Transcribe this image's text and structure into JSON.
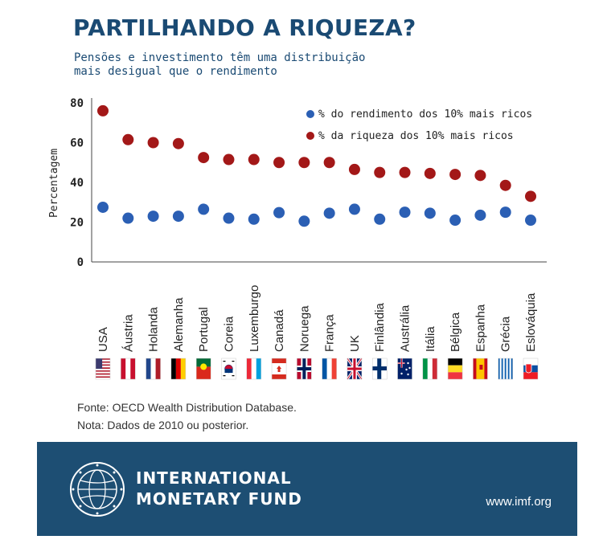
{
  "header": {
    "title": "PARTILHANDO A RIQUEZA?",
    "subtitle": "Pensões e investimento têm uma distribuição\nmais desigual que o rendimento"
  },
  "chart_data": {
    "type": "scatter",
    "ylabel": "Percentagem",
    "xlabel": "",
    "ylim": [
      0,
      80
    ],
    "yticks": [
      0,
      20,
      40,
      60,
      80
    ],
    "grid": false,
    "legend_position": "top-right",
    "categories": [
      "USA",
      "Áustria",
      "Holanda",
      "Alemanha",
      "Portugal",
      "Coreia",
      "Luxemburgo",
      "Canadá",
      "Noruega",
      "França",
      "UK",
      "Finlândia",
      "Austrália",
      "Itália",
      "Bélgica",
      "Espanha",
      "Grécia",
      "Eslováquia"
    ],
    "series": [
      {
        "name": "% do rendimento dos 10% mais ricos",
        "color": "#2b5fb4",
        "values": [
          27.5,
          22,
          23,
          23,
          26.5,
          22,
          21.5,
          24.8,
          20.5,
          24.5,
          26.5,
          21.5,
          25,
          24.5,
          21,
          23.5,
          25,
          21
        ]
      },
      {
        "name": "% da riqueza dos 10% mais ricos",
        "color": "#a31818",
        "values": [
          76,
          61.5,
          60,
          59.5,
          52.5,
          51.5,
          51.5,
          50,
          50,
          50,
          46.5,
          45,
          45,
          44.5,
          44,
          43.5,
          38.5,
          33
        ]
      }
    ],
    "flags": [
      "us-flag",
      "at-flag",
      "nl-flag",
      "de-flag",
      "pt-flag",
      "kr-flag",
      "lu-flag",
      "ca-flag",
      "no-flag",
      "fr-flag",
      "gb-flag",
      "fi-flag",
      "au-flag",
      "it-flag",
      "be-flag",
      "es-flag",
      "gr-flag",
      "sk-flag"
    ]
  },
  "notes": {
    "source": "Fonte: OECD Wealth Distribution Database.",
    "note": "Nota: Dados de 2010 ou posterior."
  },
  "footer": {
    "org_name": "INTERNATIONAL\nMONETARY FUND",
    "url": "www.imf.org",
    "seal_icon": "imf-seal-icon",
    "background": "#1d4e73"
  }
}
